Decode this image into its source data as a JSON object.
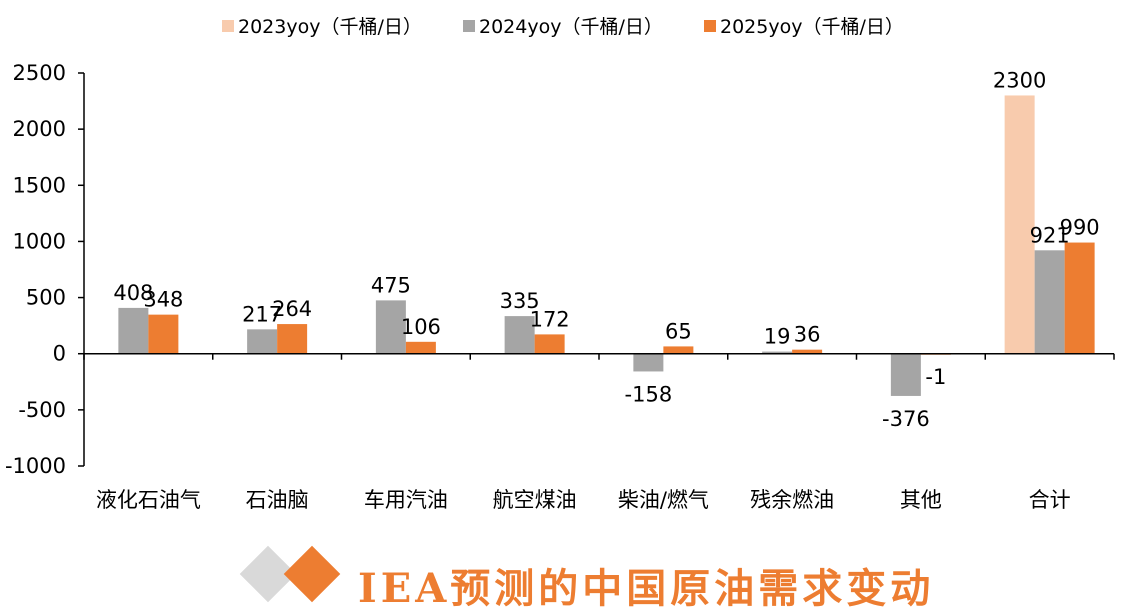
{
  "chart_data": {
    "type": "bar",
    "title": "",
    "xlabel": "",
    "ylabel": "",
    "ylim": [
      -1000,
      2500
    ],
    "yticks": [
      2500,
      2000,
      1500,
      1000,
      500,
      0,
      -500,
      -1000
    ],
    "grid": false,
    "legend_position": "top",
    "categories": [
      "液化石油气",
      "石油脑",
      "车用汽油",
      "航空煤油",
      "柴油/燃气",
      "残余燃油",
      "其他",
      "合计"
    ],
    "series": [
      {
        "name": "2023yoy（千桶/日）",
        "color": "#F8CBAD",
        "values": [
          null,
          null,
          null,
          null,
          null,
          null,
          null,
          2300
        ],
        "labels": [
          "",
          "",
          "",
          "",
          "",
          "",
          "",
          "2300"
        ]
      },
      {
        "name": "2024yoy（千桶/日）",
        "color": "#A5A5A5",
        "values": [
          408,
          217,
          475,
          335,
          -158,
          19,
          -376,
          921
        ],
        "labels": [
          "408",
          "217",
          "475",
          "335",
          "-158",
          "19",
          "-376",
          "921"
        ]
      },
      {
        "name": "2025yoy（千桶/日）",
        "color": "#ED7D31",
        "values": [
          348,
          264,
          106,
          172,
          65,
          36,
          -1,
          990
        ],
        "labels": [
          "348",
          "264",
          "106",
          "172",
          "65",
          "36",
          "-1",
          "990"
        ]
      }
    ]
  },
  "watermark": {
    "text": "IEA预测的中国原油需求变动"
  }
}
